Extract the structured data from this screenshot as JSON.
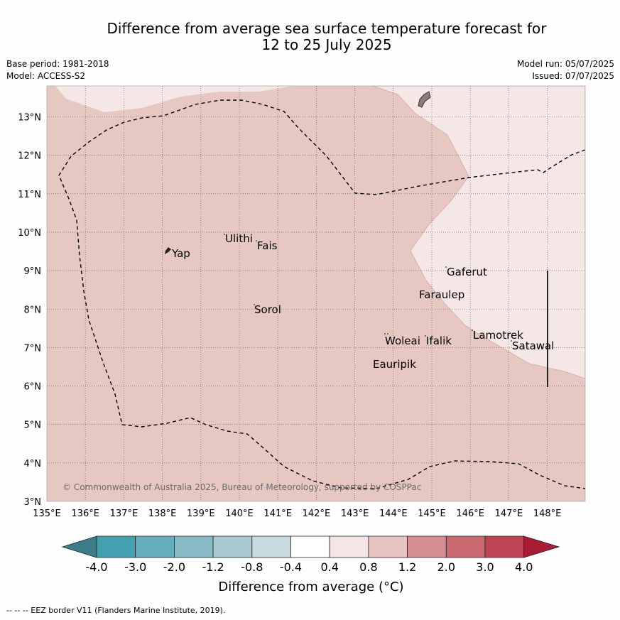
{
  "title": {
    "line1": "Difference from average sea surface temperature forecast for",
    "line2": "12 to 25 July 2025"
  },
  "meta": {
    "base_period": "Base period: 1981-2018",
    "model": "Model: ACCESS-S2",
    "model_run": "Model run: 05/07/2025",
    "issued": "Issued: 07/07/2025"
  },
  "map": {
    "x_ticks": [
      "135°E",
      "136°E",
      "137°E",
      "138°E",
      "139°E",
      "140°E",
      "141°E",
      "142°E",
      "143°E",
      "144°E",
      "145°E",
      "146°E",
      "147°E",
      "148°E"
    ],
    "y_ticks": [
      "3°N",
      "4°N",
      "5°N",
      "6°N",
      "7°N",
      "8°N",
      "9°N",
      "10°N",
      "11°N",
      "12°N",
      "13°N"
    ],
    "places": [
      "Yap",
      "Ulithi",
      "Fais",
      "Gaferut",
      "Faraulep",
      "Sorol",
      "Woleai",
      "Ifalik",
      "Lamotrek",
      "Satawal",
      "Eauripik"
    ],
    "copyright": "© Commonwealth of Australia 2025, Bureau of Meteorology, supported by COSPPac",
    "colors": {
      "anomaly_0_4_to_0_8": "#f4e7e5",
      "anomaly_0_8_to_1_2": "#e7c7c2",
      "land": "#8c7b78"
    }
  },
  "colorbar": {
    "labels": [
      "-4.0",
      "-3.0",
      "-2.0",
      "-1.2",
      "-0.8",
      "-0.4",
      "0.4",
      "0.8",
      "1.2",
      "2.0",
      "3.0",
      "4.0"
    ],
    "colors": [
      "#42a0b0",
      "#67afbd",
      "#88b9c4",
      "#a9cad1",
      "#c9dbdf",
      "#ffffff",
      "#f5e6e5",
      "#e7c3c1",
      "#d68d93",
      "#ca6870",
      "#bd4454"
    ],
    "under_color": "#3c7c86",
    "over_color": "#a81c36",
    "label": "Difference from average (°C)"
  },
  "footer": "--  --  -- EEZ border V11 (Flanders Marine Institute, 2019)."
}
